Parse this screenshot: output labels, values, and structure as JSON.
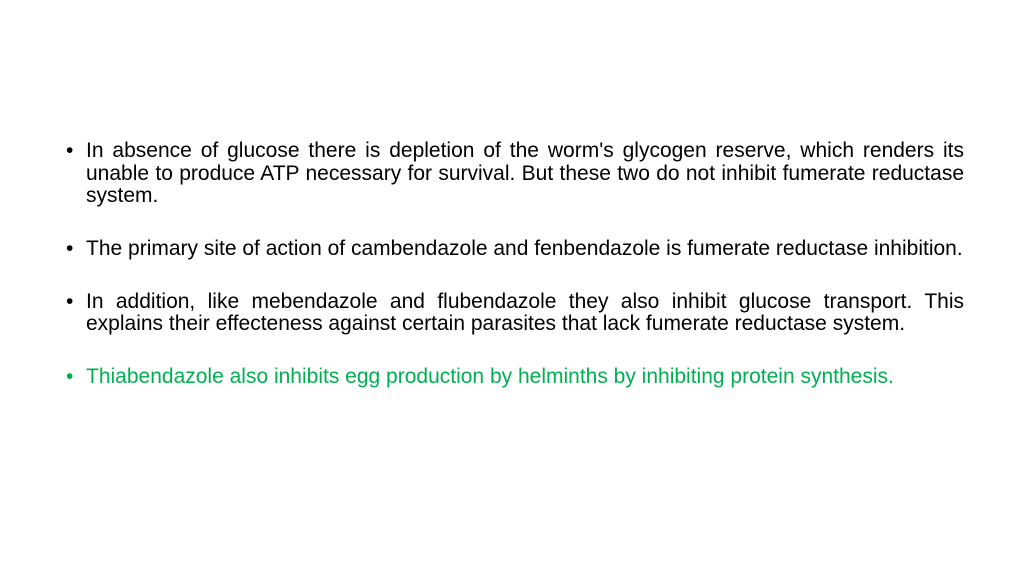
{
  "slide": {
    "background_color": "#ffffff",
    "font_family": "Comic Sans MS",
    "font_size_pt": 21,
    "line_height": 1.08,
    "text_align": "justify",
    "bullet_char": "•",
    "colors": {
      "primary_text": "#000000",
      "highlight_text": "#00b050"
    },
    "bullets": [
      {
        "text": "In absence of glucose there is depletion of the worm's glycogen reserve, which renders its unable to produce ATP necessary for survival. But these two do not inhibit fumerate reductase system.",
        "color": "#000000"
      },
      {
        "text": "The primary site of action of cambendazole and fenbendazole is fumerate reductase inhibition.",
        "color": "#000000"
      },
      {
        "text": "In addition, like mebendazole and flubendazole they also inhibit glucose transport. This explains their effecteness against certain parasites that lack fumerate reductase system.",
        "color": "#000000"
      },
      {
        "text": "Thiabendazole also inhibits egg production by helminths by inhibiting protein synthesis.",
        "color": "#00b050"
      }
    ]
  }
}
